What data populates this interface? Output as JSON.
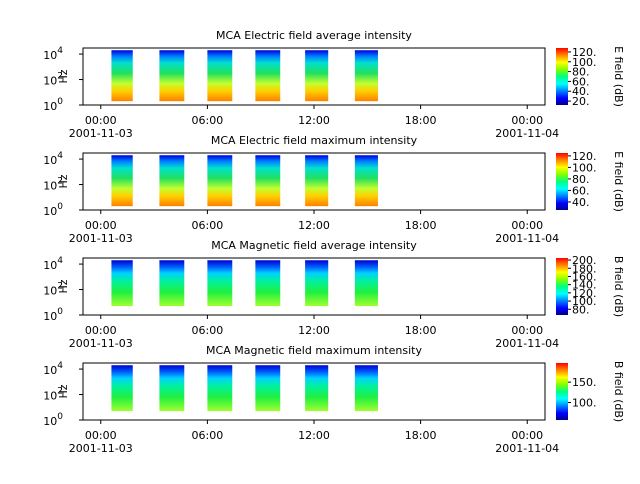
{
  "chart_data": [
    {
      "type": "spectrogram",
      "title": "MCA  Electric field average intensity",
      "ylabel": "Hz",
      "colorbar_label": "E field (dB)",
      "palette": "electric",
      "xlim": [
        -1,
        25
      ],
      "xticks": [
        {
          "value": 0,
          "label": "00:00"
        },
        {
          "value": 6,
          "label": "06:00"
        },
        {
          "value": 12,
          "label": "12:00"
        },
        {
          "value": 18,
          "label": "18:00"
        },
        {
          "value": 24,
          "label": "00:00"
        }
      ],
      "xtick_dates": [
        {
          "value": 0,
          "label": "2001-11-03"
        },
        {
          "value": 24,
          "label": "2001-11-04"
        }
      ],
      "ylog": true,
      "ylim": [
        1,
        30000
      ],
      "yticks": [
        {
          "value": 1,
          "label": "10",
          "exponent": "0"
        },
        {
          "value": 100,
          "label": "10",
          "exponent": "2"
        },
        {
          "value": 10000,
          "label": "10",
          "exponent": "4"
        }
      ],
      "flim": [
        2,
        20000
      ],
      "segments": [
        {
          "start": 0.6,
          "end": 1.8
        },
        {
          "start": 3.3,
          "end": 4.7
        },
        {
          "start": 6.0,
          "end": 7.4
        },
        {
          "start": 8.7,
          "end": 10.1
        },
        {
          "start": 11.5,
          "end": 12.8
        },
        {
          "start": 14.3,
          "end": 15.6
        }
      ],
      "clim": [
        12,
        128
      ],
      "cticks": [
        {
          "value": 20,
          "label": "20."
        },
        {
          "value": 40,
          "label": "40."
        },
        {
          "value": 60,
          "label": "60."
        },
        {
          "value": 80,
          "label": "80."
        },
        {
          "value": 100,
          "label": "100."
        },
        {
          "value": 120,
          "label": "120."
        }
      ]
    },
    {
      "type": "spectrogram",
      "title": "MCA  Electric field maximum intensity",
      "ylabel": "Hz",
      "colorbar_label": "E field (dB)",
      "palette": "electric",
      "xlim": [
        -1,
        25
      ],
      "xticks": [
        {
          "value": 0,
          "label": "00:00"
        },
        {
          "value": 6,
          "label": "06:00"
        },
        {
          "value": 12,
          "label": "12:00"
        },
        {
          "value": 18,
          "label": "18:00"
        },
        {
          "value": 24,
          "label": "00:00"
        }
      ],
      "xtick_dates": [
        {
          "value": 0,
          "label": "2001-11-03"
        },
        {
          "value": 24,
          "label": "2001-11-04"
        }
      ],
      "ylog": true,
      "ylim": [
        1,
        30000
      ],
      "yticks": [
        {
          "value": 1,
          "label": "10",
          "exponent": "0"
        },
        {
          "value": 100,
          "label": "10",
          "exponent": "2"
        },
        {
          "value": 10000,
          "label": "10",
          "exponent": "4"
        }
      ],
      "flim": [
        2,
        20000
      ],
      "segments": [
        {
          "start": 0.6,
          "end": 1.8
        },
        {
          "start": 3.3,
          "end": 4.7
        },
        {
          "start": 6.0,
          "end": 7.4
        },
        {
          "start": 8.7,
          "end": 10.1
        },
        {
          "start": 11.5,
          "end": 12.8
        },
        {
          "start": 14.3,
          "end": 15.6
        }
      ],
      "clim": [
        26,
        125
      ],
      "cticks": [
        {
          "value": 40,
          "label": "40."
        },
        {
          "value": 60,
          "label": "60."
        },
        {
          "value": 80,
          "label": "80."
        },
        {
          "value": 100,
          "label": "100."
        },
        {
          "value": 120,
          "label": "120."
        }
      ]
    },
    {
      "type": "spectrogram",
      "title": "MCA  Magnetic field average intensity",
      "ylabel": "Hz",
      "colorbar_label": "B field (dB)",
      "palette": "magnetic",
      "xlim": [
        -1,
        25
      ],
      "xticks": [
        {
          "value": 0,
          "label": "00:00"
        },
        {
          "value": 6,
          "label": "06:00"
        },
        {
          "value": 12,
          "label": "12:00"
        },
        {
          "value": 18,
          "label": "18:00"
        },
        {
          "value": 24,
          "label": "00:00"
        }
      ],
      "xtick_dates": [
        {
          "value": 0,
          "label": "2001-11-03"
        },
        {
          "value": 24,
          "label": "2001-11-04"
        }
      ],
      "ylog": true,
      "ylim": [
        1,
        30000
      ],
      "yticks": [
        {
          "value": 1,
          "label": "10",
          "exponent": "0"
        },
        {
          "value": 100,
          "label": "10",
          "exponent": "2"
        },
        {
          "value": 10000,
          "label": "10",
          "exponent": "4"
        }
      ],
      "flim": [
        5,
        20000
      ],
      "segments": [
        {
          "start": 0.6,
          "end": 1.8
        },
        {
          "start": 3.3,
          "end": 4.7
        },
        {
          "start": 6.0,
          "end": 7.4
        },
        {
          "start": 8.7,
          "end": 10.1
        },
        {
          "start": 11.5,
          "end": 12.8
        },
        {
          "start": 14.3,
          "end": 15.6
        }
      ],
      "clim": [
        66,
        205
      ],
      "cticks": [
        {
          "value": 80,
          "label": "80."
        },
        {
          "value": 100,
          "label": "100."
        },
        {
          "value": 120,
          "label": "120."
        },
        {
          "value": 140,
          "label": "140."
        },
        {
          "value": 160,
          "label": "160."
        },
        {
          "value": 180,
          "label": "180."
        },
        {
          "value": 200,
          "label": "200."
        }
      ]
    },
    {
      "type": "spectrogram",
      "title": "MCA  Magnetic field maximum intensity",
      "ylabel": "Hz",
      "colorbar_label": "B field (dB)",
      "palette": "magnetic",
      "xlim": [
        -1,
        25
      ],
      "xticks": [
        {
          "value": 0,
          "label": "00:00"
        },
        {
          "value": 6,
          "label": "06:00"
        },
        {
          "value": 12,
          "label": "12:00"
        },
        {
          "value": 18,
          "label": "18:00"
        },
        {
          "value": 24,
          "label": "00:00"
        }
      ],
      "xtick_dates": [
        {
          "value": 0,
          "label": "2001-11-03"
        },
        {
          "value": 24,
          "label": "2001-11-04"
        }
      ],
      "ylog": true,
      "ylim": [
        1,
        30000
      ],
      "yticks": [
        {
          "value": 1,
          "label": "10",
          "exponent": "0"
        },
        {
          "value": 100,
          "label": "10",
          "exponent": "2"
        },
        {
          "value": 10000,
          "label": "10",
          "exponent": "4"
        }
      ],
      "flim": [
        5,
        20000
      ],
      "segments": [
        {
          "start": 0.6,
          "end": 1.8
        },
        {
          "start": 3.3,
          "end": 4.7
        },
        {
          "start": 6.0,
          "end": 7.4
        },
        {
          "start": 8.7,
          "end": 10.1
        },
        {
          "start": 11.5,
          "end": 12.8
        },
        {
          "start": 14.3,
          "end": 15.6
        }
      ],
      "clim": [
        57,
        197
      ],
      "cticks": [
        {
          "value": 100,
          "label": "100."
        },
        {
          "value": 150,
          "label": "150."
        }
      ]
    }
  ]
}
